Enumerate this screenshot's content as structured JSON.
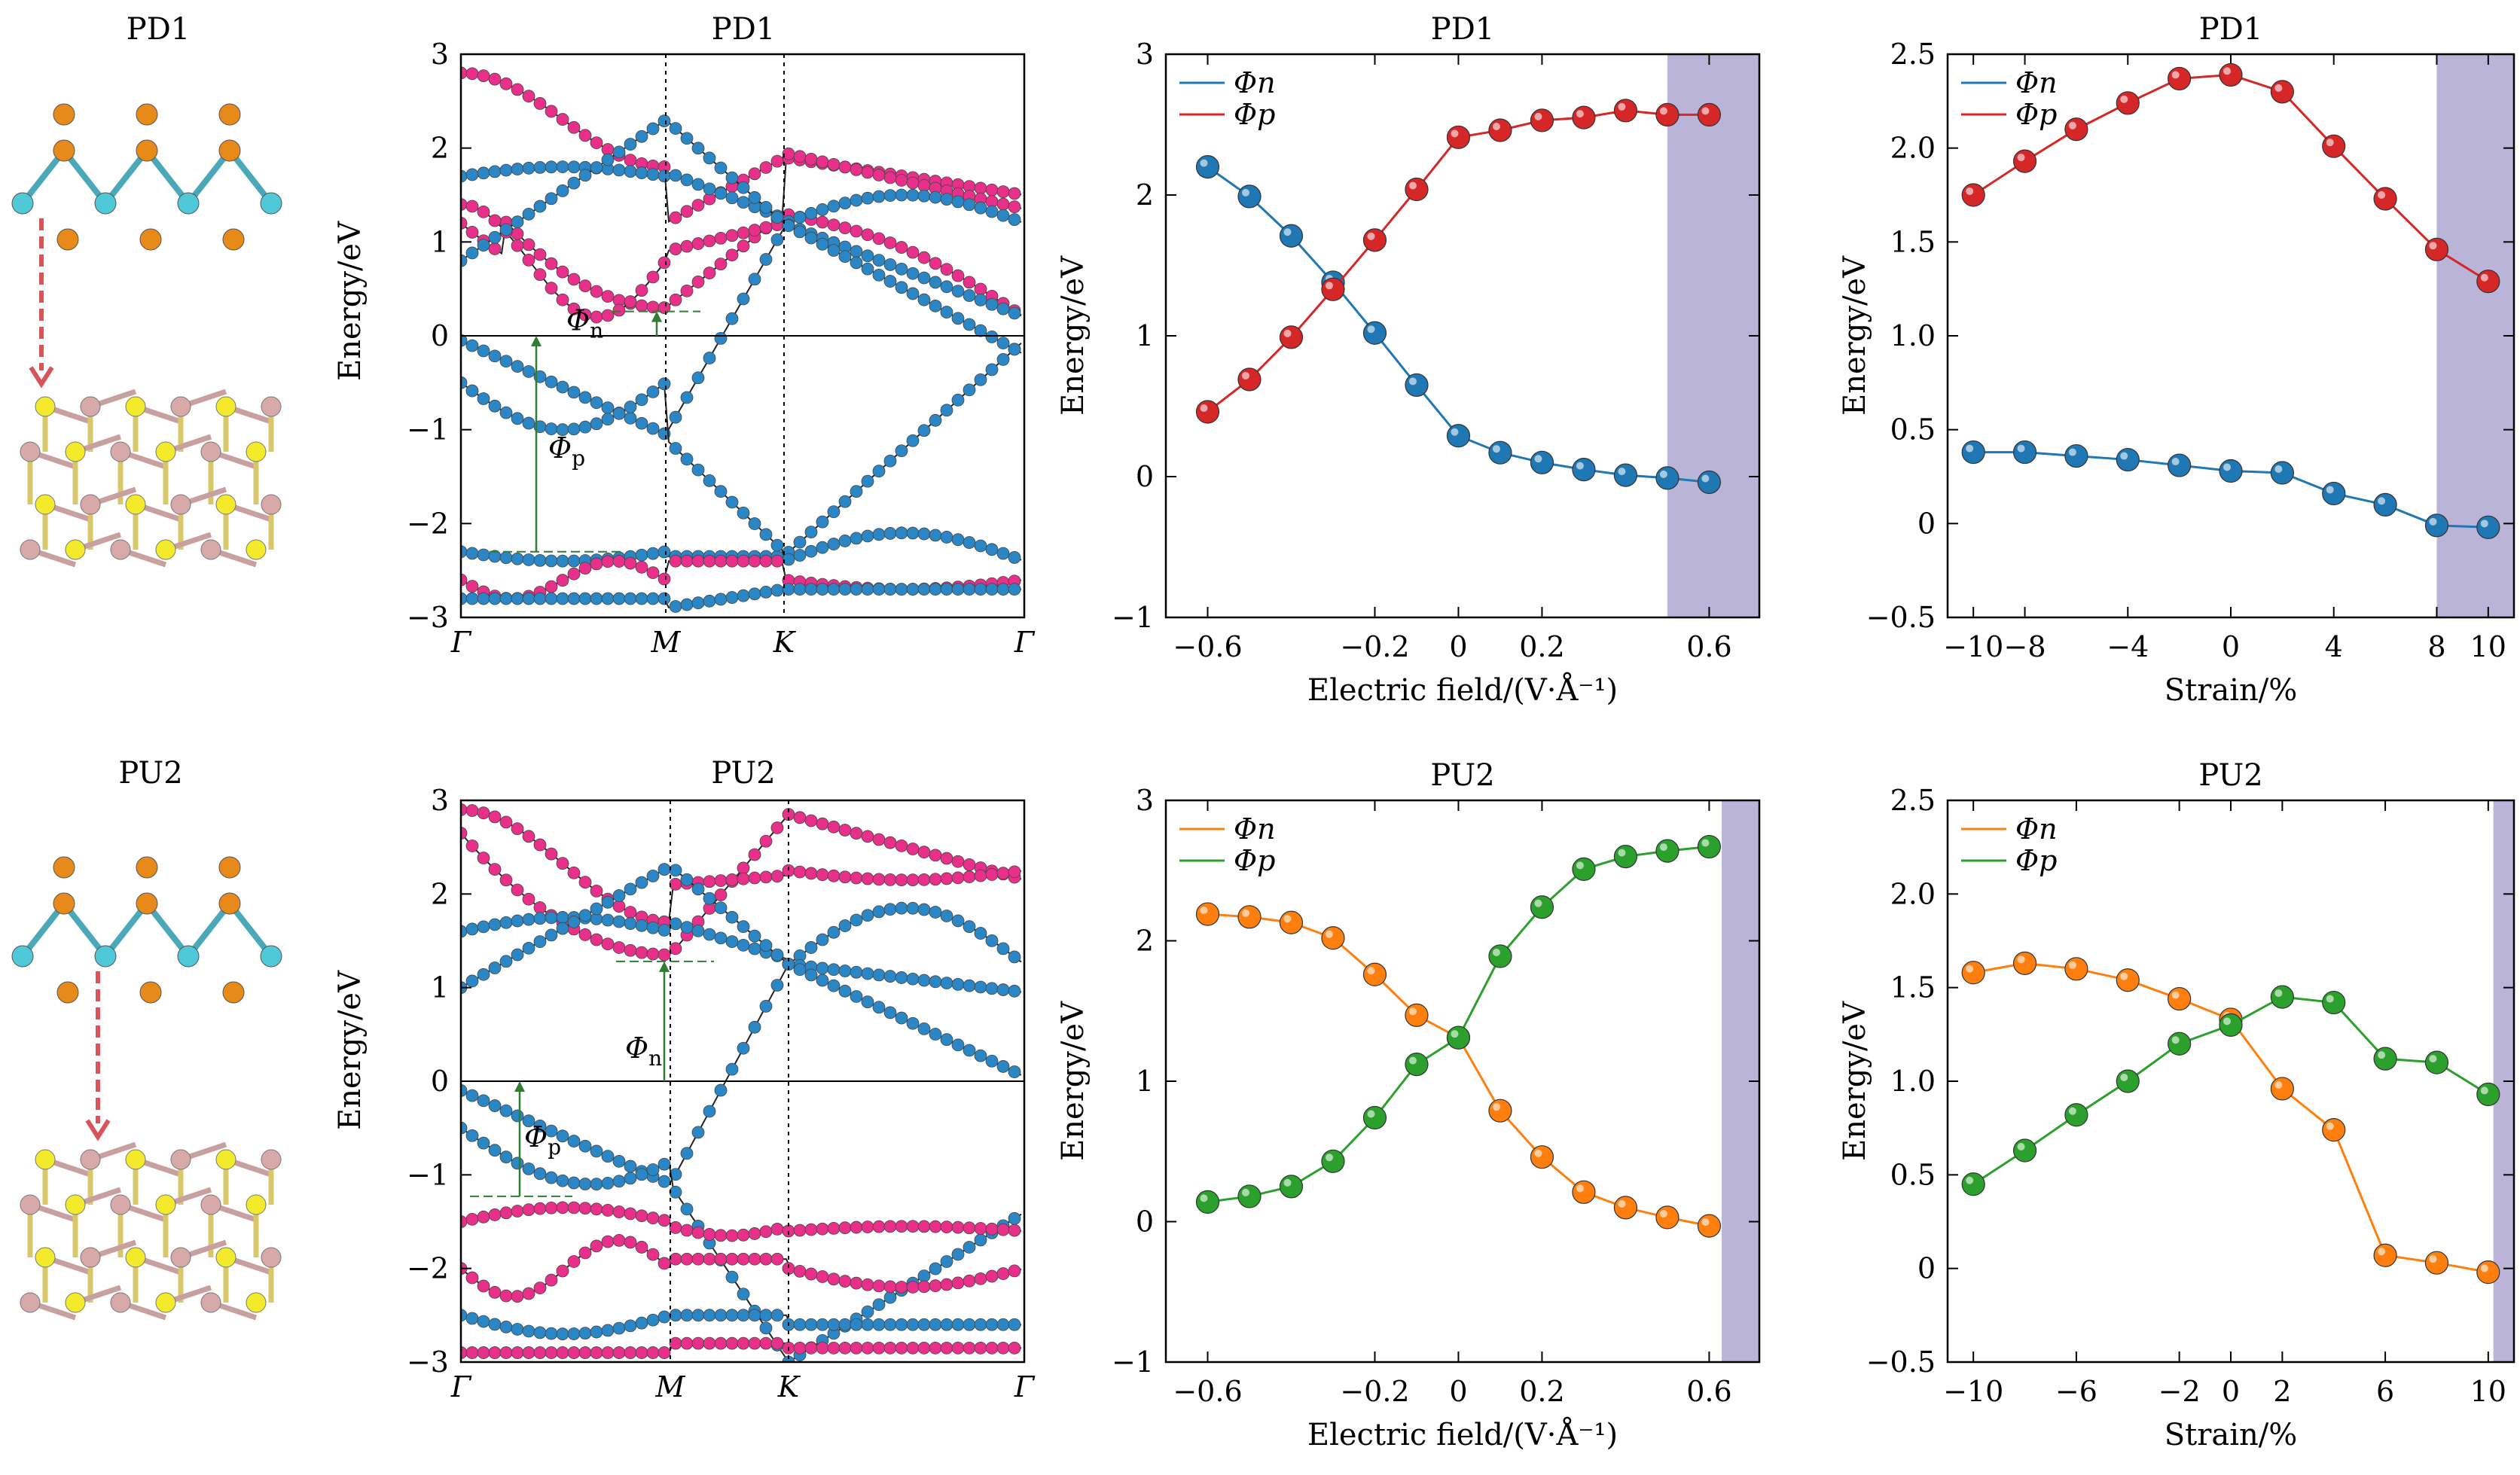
{
  "colors": {
    "blue": "#1f77b4",
    "red": "#d62728",
    "orange": "#ff7f0e",
    "green": "#2ca02c",
    "magenta": "#e8308a",
    "band_blue": "#2a86c4",
    "shade": "#b9b4d8",
    "atom_orange": "#e88a1a",
    "atom_cyan": "#4fc9d8",
    "atom_yellow": "#f2ea2a",
    "atom_pink": "#d7a9a9",
    "arrow": "#d9535b",
    "ann_green": "#2e7d32"
  },
  "structures": [
    {
      "title": "PD1"
    },
    {
      "title": "PU2"
    }
  ],
  "bands": [
    {
      "title": "PD1",
      "ylabel": "Energy/eV",
      "ylim": [
        -3,
        3
      ],
      "yticks": [
        "3",
        "2",
        "1",
        "0",
        "−1",
        "−2",
        "−3"
      ],
      "kpoints": [
        "Γ",
        "M",
        "K",
        "Γ"
      ],
      "phi_n": "Φ",
      "phi_n_sub": "n",
      "phi_p": "Φ",
      "phi_p_sub": "p"
    },
    {
      "title": "PU2",
      "ylabel": "Energy/eV",
      "ylim": [
        -3,
        3
      ],
      "yticks": [
        "3",
        "2",
        "1",
        "0",
        "−1",
        "−2",
        "−3"
      ],
      "kpoints": [
        "Γ",
        "M",
        "K",
        "Γ"
      ],
      "phi_n": "Φ",
      "phi_n_sub": "n",
      "phi_p": "Φ",
      "phi_p_sub": "p"
    }
  ],
  "chart_data": [
    {
      "type": "line",
      "title": "PD1",
      "xlabel": "Electric field/(V·Å⁻¹)",
      "ylabel": "Energy/eV",
      "xlim": [
        -0.7,
        0.72
      ],
      "ylim": [
        -1,
        3
      ],
      "xticks": [
        -0.6,
        -0.2,
        0,
        0.2,
        0.6
      ],
      "xticklabels": [
        "−0.6",
        "−0.2",
        "0",
        "0.2",
        "0.6"
      ],
      "yticks": [
        -1,
        0,
        1,
        2,
        3
      ],
      "yticklabels": [
        "−1",
        "0",
        "1",
        "2",
        "3"
      ],
      "shade": [
        0.5,
        0.72
      ],
      "legend": "top-left",
      "x": [
        -0.6,
        -0.5,
        -0.4,
        -0.3,
        -0.2,
        -0.1,
        0,
        0.1,
        0.2,
        0.3,
        0.4,
        0.5,
        0.6
      ],
      "series": [
        {
          "name": "Φn",
          "color": "#1f77b4",
          "values": [
            2.2,
            1.99,
            1.71,
            1.38,
            1.02,
            0.65,
            0.29,
            0.17,
            0.1,
            0.05,
            0.01,
            -0.01,
            -0.04
          ]
        },
        {
          "name": "Φp",
          "color": "#d62728",
          "values": [
            0.46,
            0.69,
            0.99,
            1.33,
            1.68,
            2.04,
            2.41,
            2.46,
            2.53,
            2.55,
            2.6,
            2.57,
            2.57
          ]
        }
      ]
    },
    {
      "type": "line",
      "title": "PD1",
      "xlabel": "Strain/%",
      "ylabel": "Energy/eV",
      "xlim": [
        -11,
        11
      ],
      "ylim": [
        -0.5,
        2.5
      ],
      "xticks": [
        -10,
        -8,
        -4,
        0,
        4,
        8,
        10
      ],
      "xticklabels": [
        "−10",
        "−8",
        "−4",
        "0",
        "4",
        "8",
        "10"
      ],
      "yticks": [
        -0.5,
        0,
        0.5,
        1.0,
        1.5,
        2.0,
        2.5
      ],
      "yticklabels": [
        "−0.5",
        "0",
        "0.5",
        "1.0",
        "1.5",
        "2.0",
        "2.5"
      ],
      "shade": [
        8,
        11
      ],
      "legend": "top-left",
      "x": [
        -10,
        -8,
        -6,
        -4,
        -2,
        0,
        2,
        4,
        6,
        8,
        10
      ],
      "series": [
        {
          "name": "Φn",
          "color": "#1f77b4",
          "values": [
            0.38,
            0.38,
            0.36,
            0.34,
            0.31,
            0.28,
            0.27,
            0.16,
            0.1,
            -0.01,
            -0.02
          ]
        },
        {
          "name": "Φp",
          "color": "#d62728",
          "values": [
            1.75,
            1.93,
            2.1,
            2.24,
            2.37,
            2.39,
            2.3,
            2.01,
            1.73,
            1.46,
            1.29
          ]
        }
      ]
    },
    {
      "type": "line",
      "title": "PU2",
      "xlabel": "Electric field/(V·Å⁻¹)",
      "ylabel": "Energy/eV",
      "xlim": [
        -0.7,
        0.72
      ],
      "ylim": [
        -1,
        3
      ],
      "xticks": [
        -0.6,
        -0.2,
        0,
        0.2,
        0.6
      ],
      "xticklabels": [
        "−0.6",
        "−0.2",
        "0",
        "0.2",
        "0.6"
      ],
      "yticks": [
        -1,
        0,
        1,
        2,
        3
      ],
      "yticklabels": [
        "−1",
        "0",
        "1",
        "2",
        "3"
      ],
      "shade": [
        0.63,
        0.72
      ],
      "legend": "top-left",
      "x": [
        -0.6,
        -0.5,
        -0.4,
        -0.3,
        -0.2,
        -0.1,
        0,
        0.1,
        0.2,
        0.3,
        0.4,
        0.5,
        0.6
      ],
      "series": [
        {
          "name": "Φn",
          "color": "#ff7f0e",
          "values": [
            2.19,
            2.17,
            2.13,
            2.02,
            1.76,
            1.47,
            1.31,
            0.79,
            0.46,
            0.21,
            0.1,
            0.03,
            -0.03
          ]
        },
        {
          "name": "Φp",
          "color": "#2ca02c",
          "values": [
            0.14,
            0.18,
            0.25,
            0.43,
            0.74,
            1.12,
            1.31,
            1.89,
            2.24,
            2.51,
            2.6,
            2.64,
            2.67
          ]
        }
      ]
    },
    {
      "type": "line",
      "title": "PU2",
      "xlabel": "Strain/%",
      "ylabel": "Energy/eV",
      "xlim": [
        -11,
        11
      ],
      "ylim": [
        -0.5,
        2.5
      ],
      "xticks": [
        -10,
        -6,
        -2,
        0,
        2,
        6,
        10
      ],
      "xticklabels": [
        "−10",
        "−6",
        "−2",
        "0",
        "2",
        "6",
        "10"
      ],
      "yticks": [
        -0.5,
        0,
        0.5,
        1.0,
        1.5,
        2.0,
        2.5
      ],
      "yticklabels": [
        "−0.5",
        "0",
        "0.5",
        "1.0",
        "1.5",
        "2.0",
        "2.5"
      ],
      "shade": [
        10.2,
        11
      ],
      "legend": "top-left",
      "x": [
        -10,
        -8,
        -6,
        -4,
        -2,
        0,
        2,
        4,
        6,
        8,
        10
      ],
      "series": [
        {
          "name": "Φn",
          "color": "#ff7f0e",
          "values": [
            1.58,
            1.63,
            1.6,
            1.54,
            1.44,
            1.33,
            0.96,
            0.74,
            0.07,
            0.03,
            -0.02
          ]
        },
        {
          "name": "Φp",
          "color": "#2ca02c",
          "values": [
            0.45,
            0.63,
            0.82,
            1.0,
            1.2,
            1.3,
            1.45,
            1.42,
            1.12,
            1.1,
            0.93
          ]
        }
      ]
    }
  ]
}
